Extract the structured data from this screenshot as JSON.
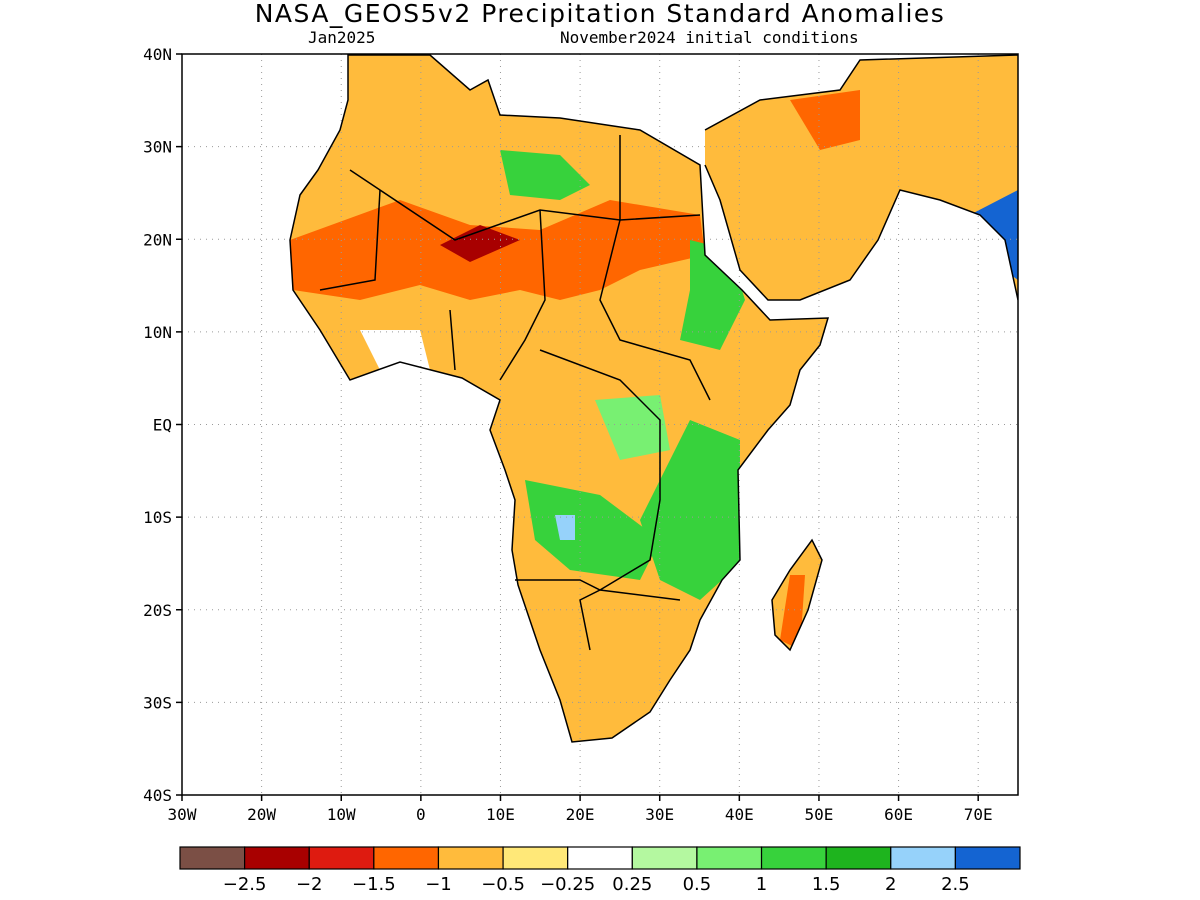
{
  "title": "NASA_GEOS5v2 Precipitation Standard Anomalies",
  "subtitle_left": "Jan2025",
  "subtitle_right": "November2024 initial conditions",
  "map": {
    "lon_range": [
      -30,
      75
    ],
    "lat_range": [
      -40,
      40
    ],
    "lat_labels": [
      "40N",
      "30N",
      "20N",
      "10N",
      "EQ",
      "10S",
      "20S",
      "30S",
      "40S"
    ],
    "lon_labels": [
      "30W",
      "20W",
      "10W",
      "0",
      "10E",
      "20E",
      "30E",
      "40E",
      "50E",
      "60E",
      "70E"
    ],
    "gridlines": "dotted"
  },
  "colorbar": {
    "colors": [
      "#7b4f45",
      "#a80000",
      "#de1b10",
      "#ff6600",
      "#ffbb3c",
      "#ffe878",
      "#ffffff",
      "#b4f8a0",
      "#78f072",
      "#37d23c",
      "#1eb41e",
      "#96d2fa",
      "#1464d2"
    ],
    "tick_labels": [
      "-2.5",
      "-2",
      "-1.5",
      "-1",
      "-0.5",
      "-0.25",
      "0.25",
      "0.5",
      "1",
      "1.5",
      "2",
      "2.5"
    ]
  }
}
